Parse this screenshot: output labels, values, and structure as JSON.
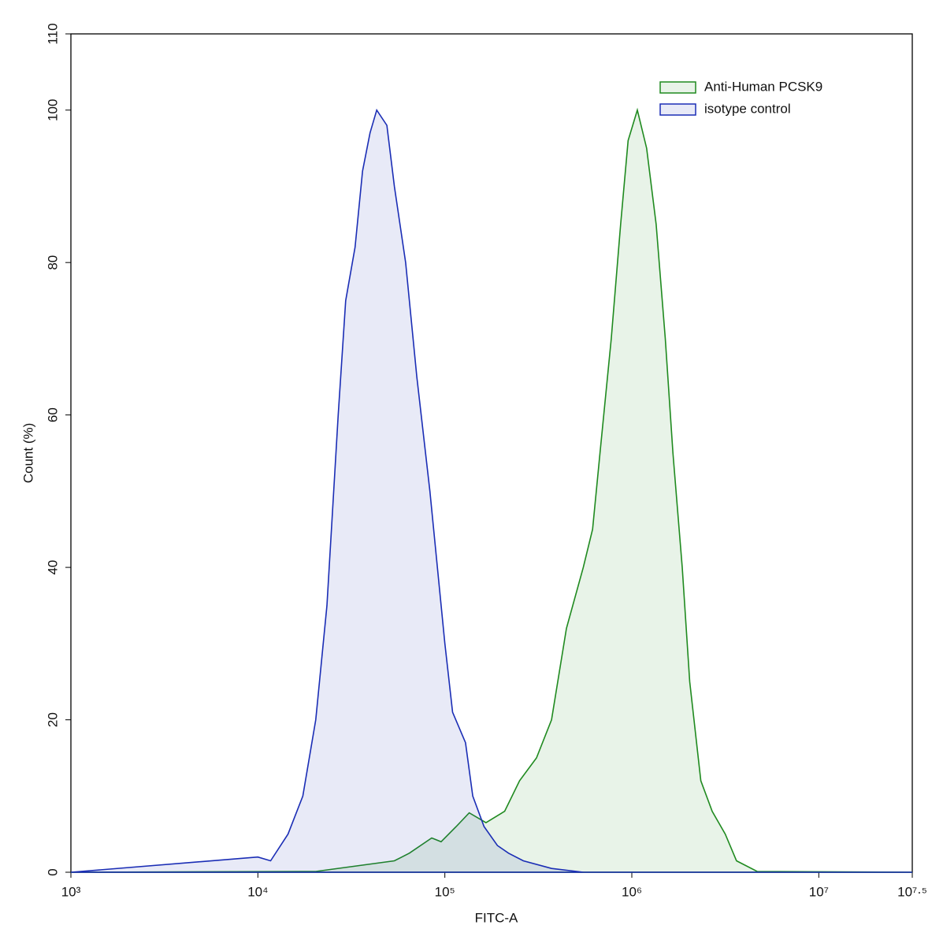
{
  "chart_data": {
    "type": "area",
    "xlabel": "FITC-A",
    "ylabel": "Count  (%)",
    "xscale": "log",
    "xlim": [
      1000,
      31622777
    ],
    "ylim": [
      0,
      110
    ],
    "xticks": [
      {
        "value": 1000,
        "label": "10³"
      },
      {
        "value": 10000,
        "label": "10⁴"
      },
      {
        "value": 100000,
        "label": "10⁵"
      },
      {
        "value": 1000000,
        "label": "10⁶"
      },
      {
        "value": 10000000,
        "label": "10⁷"
      },
      {
        "value": 31622777,
        "label": "10⁷·⁵"
      }
    ],
    "yticks": [
      0,
      20,
      40,
      60,
      80,
      100,
      110
    ],
    "legend": "upper right",
    "series": [
      {
        "name": "Anti-Human PCSK9",
        "color": "#1f8a1f",
        "x": [
          1000,
          20400,
          53700,
          64600,
          85100,
          95500,
          115000,
          135000,
          166000,
          209000,
          251000,
          309000,
          372000,
          447000,
          550000,
          617000,
          676000,
          776000,
          871000,
          955000,
          1070000,
          1200000,
          1350000,
          1510000,
          1660000,
          1860000,
          2040000,
          2340000,
          2690000,
          3160000,
          3630000,
          4680000,
          31622777
        ],
        "values": [
          0,
          0.1,
          1.5,
          2.5,
          4.5,
          4,
          6,
          7.8,
          6.5,
          8,
          12,
          15,
          20,
          32,
          40,
          45,
          55,
          70,
          85,
          96,
          100,
          95,
          85,
          70,
          55,
          40,
          25,
          12,
          8,
          5,
          1.5,
          0.1,
          0
        ]
      },
      {
        "name": "isotype control",
        "color": "#1a2db5",
        "x": [
          1000,
          10000,
          11700,
          14500,
          17400,
          20400,
          23400,
          26900,
          29500,
          33100,
          36300,
          39800,
          43200,
          49000,
          53700,
          61700,
          70800,
          83200,
          91200,
          100000,
          110000,
          129000,
          141000,
          162000,
          191000,
          219000,
          263000,
          372000,
          550000,
          31622777
        ],
        "values": [
          0,
          2,
          1.5,
          5,
          10,
          20,
          35,
          60,
          75,
          82,
          92,
          97,
          100,
          98,
          90,
          80,
          65,
          50,
          40,
          30,
          21,
          17,
          10,
          6,
          3.5,
          2.5,
          1.5,
          0.5,
          0,
          0
        ]
      }
    ]
  }
}
